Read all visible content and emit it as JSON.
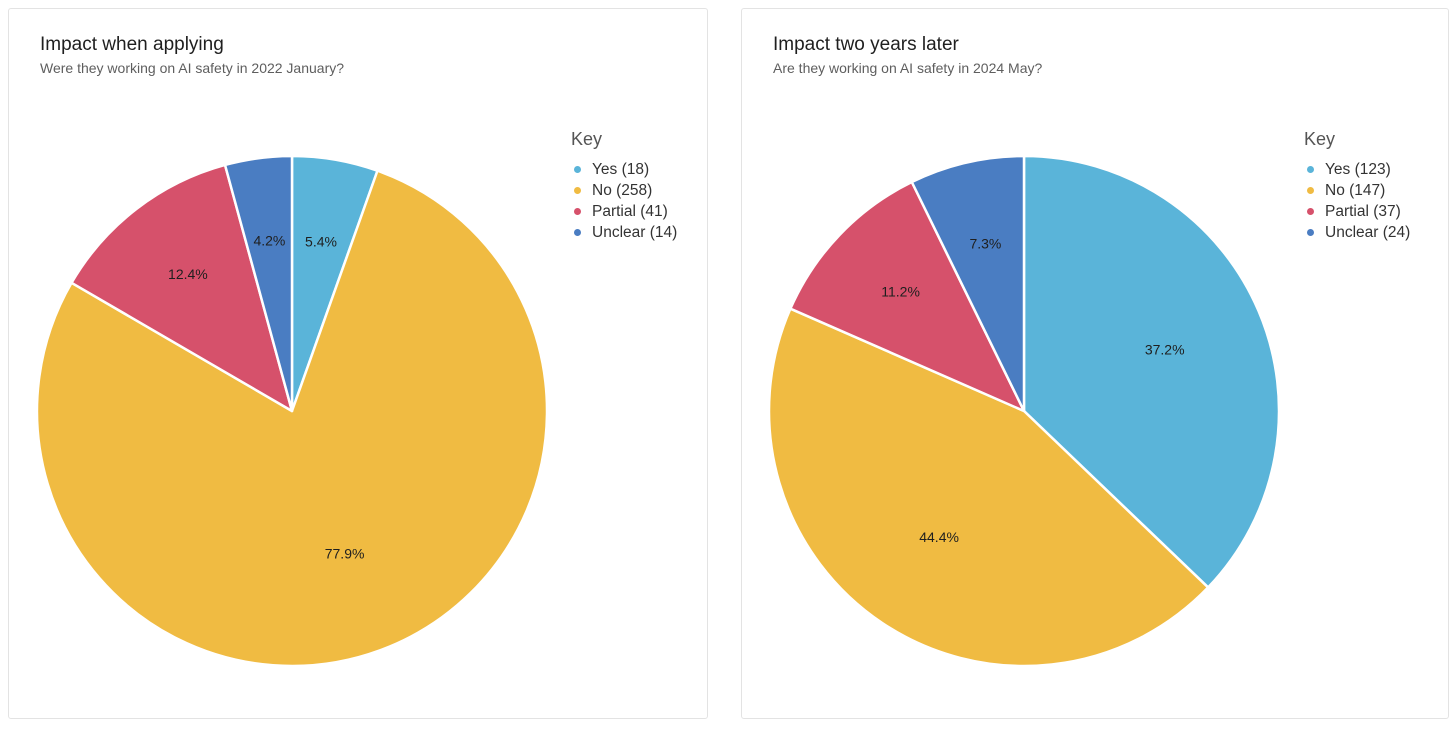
{
  "chart_data": [
    {
      "type": "pie",
      "title": "Impact when applying",
      "subtitle": "Were they working on AI safety in 2022 January?",
      "legend_title": "Key",
      "legend_position": "right",
      "categories": [
        "Yes",
        "No",
        "Partial",
        "Unclear"
      ],
      "values": [
        18,
        258,
        41,
        14
      ],
      "legend_labels": [
        "Yes (18)",
        "No (258)",
        "Partial (41)",
        "Unclear (14)"
      ],
      "percent_labels": [
        "5.4%",
        "77.9%",
        "12.4%",
        "4.2%"
      ],
      "colors": [
        "#5ab4d9",
        "#f0bb42",
        "#d6516b",
        "#4a7dc2"
      ]
    },
    {
      "type": "pie",
      "title": "Impact two years later",
      "subtitle": "Are they working on AI safety in 2024 May?",
      "legend_title": "Key",
      "legend_position": "right",
      "categories": [
        "Yes",
        "No",
        "Partial",
        "Unclear"
      ],
      "values": [
        123,
        147,
        37,
        24
      ],
      "legend_labels": [
        "Yes (123)",
        "No (147)",
        "Partial (37)",
        "Unclear (24)"
      ],
      "percent_labels": [
        "37.2%",
        "44.4%",
        "11.2%",
        "7.3%"
      ],
      "colors": [
        "#5ab4d9",
        "#f0bb42",
        "#d6516b",
        "#4a7dc2"
      ]
    }
  ]
}
